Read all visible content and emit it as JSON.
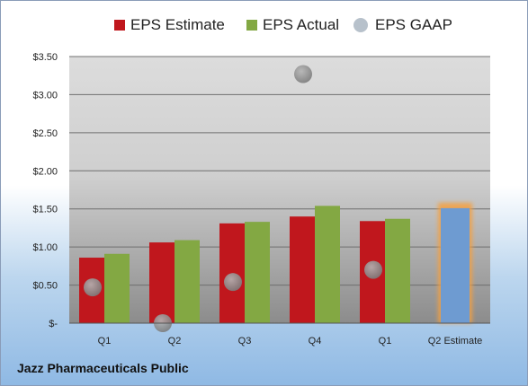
{
  "chart_data": {
    "type": "bar",
    "categories": [
      "Q1",
      "Q2",
      "Q3",
      "Q4",
      "Q1",
      "Q2 Estimate"
    ],
    "series": [
      {
        "name": "EPS Estimate",
        "values": [
          0.86,
          1.06,
          1.31,
          1.4,
          1.34,
          null
        ],
        "color": "#c0171d"
      },
      {
        "name": "EPS Actual",
        "values": [
          0.91,
          1.09,
          1.33,
          1.54,
          1.37,
          null
        ],
        "color": "#83a843"
      },
      {
        "name": "EPS GAAP",
        "type": "scatter",
        "values": [
          0.47,
          -0.02,
          0.54,
          3.27,
          0.7,
          null
        ],
        "color": "#a8b2bd"
      }
    ],
    "estimate_bar": {
      "category": "Q2 Estimate",
      "value": 1.51,
      "color": "#6e9bd1",
      "highlight": "#f5a040"
    },
    "ylim": [
      0,
      3.5
    ],
    "yticks": [
      0,
      0.5,
      1.0,
      1.5,
      2.0,
      2.5,
      3.0,
      3.5
    ],
    "ytick_labels": [
      "$-",
      "$0.50",
      "$1.00",
      "$1.50",
      "$2.00",
      "$2.50",
      "$3.00",
      "$3.50"
    ],
    "grid": true,
    "legend": "top"
  },
  "footer": {
    "company": "Jazz Pharmaceuticals Public"
  }
}
